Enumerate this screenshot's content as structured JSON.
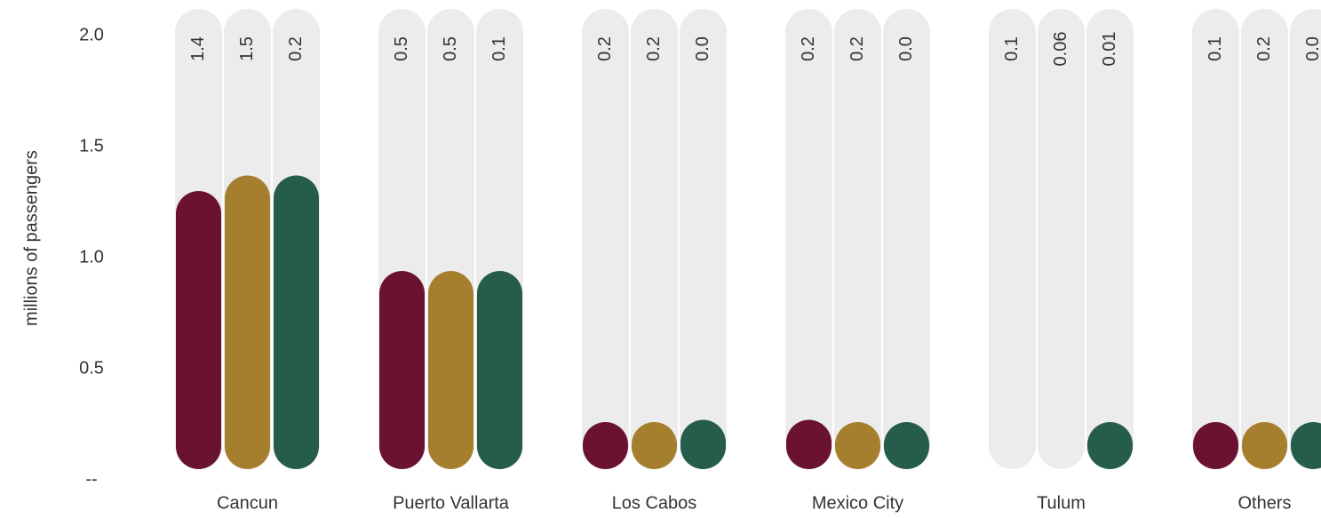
{
  "chart_data": {
    "type": "bar",
    "y_axis_label": "millions of passengers",
    "categories": [
      "Cancun",
      "Puerto Vallarta",
      "Los Cabos",
      "Mexico City",
      "Tulum",
      "Others"
    ],
    "series": [
      {
        "color": "#6b1232",
        "values": [
          1.3,
          0.94,
          0.26,
          0.27,
          null,
          0.23
        ]
      },
      {
        "color": "#a67f2e",
        "values": [
          1.37,
          0.94,
          0.25,
          0.26,
          null,
          0.26
        ]
      },
      {
        "color": "#265c4b",
        "values": [
          1.37,
          0.94,
          0.27,
          0.26,
          0.26,
          0.24
        ]
      }
    ],
    "annotations": [
      [
        "1.4",
        "1.5",
        "0.2"
      ],
      [
        "0.5",
        "0.5",
        "0.1"
      ],
      [
        "0.2",
        "0.2",
        "0.0"
      ],
      [
        "0.2",
        "0.2",
        "0.0"
      ],
      [
        "0.1",
        "0.06",
        "0.01"
      ],
      [
        "0.1",
        "0.2",
        "0.0"
      ]
    ],
    "ylim": [
      0,
      2
    ],
    "yticks": [
      {
        "value": 0,
        "label": "--"
      },
      {
        "value": 0.5,
        "label": "0.5"
      },
      {
        "value": 1,
        "label": "1.0"
      },
      {
        "value": 1.5,
        "label": "1.5"
      },
      {
        "value": 2,
        "label": "2.0"
      }
    ],
    "track_color": "#ececec"
  }
}
